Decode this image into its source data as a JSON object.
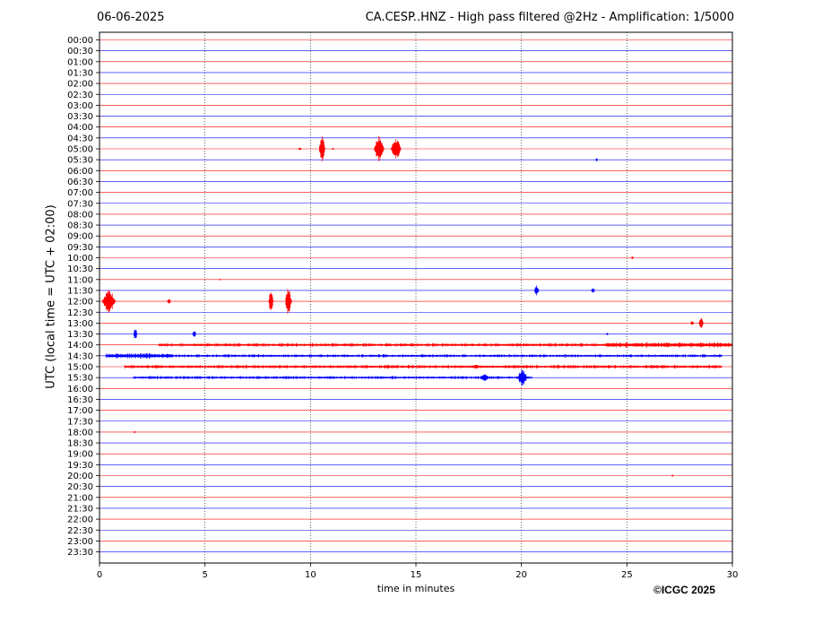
{
  "header": {
    "date": "06-06-2025",
    "title": "CA.CESP..HNZ - High pass filtered @2Hz - Amplification: 1/5000"
  },
  "footer": {
    "copyright": "©ICGC 2025"
  },
  "chart_data": {
    "type": "line",
    "title": "CA.CESP..HNZ - High pass filtered @2Hz - Amplification: 1/5000",
    "xlabel": "time in minutes",
    "ylabel": "UTC (local time = UTC + 02:00)",
    "xlim": [
      0,
      30
    ],
    "x_ticks": [
      "0",
      "5",
      "10",
      "15",
      "20",
      "25",
      "30"
    ],
    "x_tick_values": [
      0,
      5,
      10,
      15,
      20,
      25,
      30
    ],
    "grid": "vertical dotted lines at 5-minute ticks",
    "trace_colors": [
      "#ff0000",
      "#0000ff"
    ],
    "traces": [
      "00:00",
      "00:30",
      "01:00",
      "01:30",
      "02:00",
      "02:30",
      "03:00",
      "03:30",
      "04:00",
      "04:30",
      "05:00",
      "05:30",
      "06:00",
      "06:30",
      "07:00",
      "07:30",
      "08:00",
      "08:30",
      "09:00",
      "09:30",
      "10:00",
      "10:30",
      "11:00",
      "11:30",
      "12:00",
      "12:30",
      "13:00",
      "13:30",
      "14:00",
      "14:30",
      "15:00",
      "15:30",
      "16:00",
      "16:30",
      "17:00",
      "17:30",
      "18:00",
      "18:30",
      "19:00",
      "19:30",
      "20:00",
      "20:30",
      "21:00",
      "21:30",
      "22:00",
      "22:30",
      "23:00",
      "23:30"
    ],
    "events": [
      {
        "trace": "05:00",
        "start": 9.4,
        "end": 9.7,
        "amp": 0.3
      },
      {
        "trace": "05:00",
        "start": 10.4,
        "end": 10.9,
        "amp": 2.8
      },
      {
        "trace": "05:00",
        "start": 11.0,
        "end": 11.2,
        "amp": 0.2
      },
      {
        "trace": "05:00",
        "start": 13.0,
        "end": 13.8,
        "amp": 2.4
      },
      {
        "trace": "05:00",
        "start": 13.8,
        "end": 14.6,
        "amp": 2.0
      },
      {
        "trace": "05:30",
        "start": 23.5,
        "end": 23.7,
        "amp": 0.4
      },
      {
        "trace": "10:00",
        "start": 25.2,
        "end": 25.4,
        "amp": 0.3
      },
      {
        "trace": "11:00",
        "start": 5.7,
        "end": 5.8,
        "amp": 0.4
      },
      {
        "trace": "11:30",
        "start": 20.6,
        "end": 21.0,
        "amp": 1.0
      },
      {
        "trace": "11:30",
        "start": 23.3,
        "end": 23.6,
        "amp": 0.6
      },
      {
        "trace": "12:00",
        "start": 0.1,
        "end": 1.2,
        "amp": 2.2
      },
      {
        "trace": "12:00",
        "start": 3.2,
        "end": 3.5,
        "amp": 0.5
      },
      {
        "trace": "12:00",
        "start": 8.0,
        "end": 8.4,
        "amp": 2.0
      },
      {
        "trace": "12:00",
        "start": 8.8,
        "end": 9.3,
        "amp": 3.0
      },
      {
        "trace": "13:00",
        "start": 28.0,
        "end": 28.3,
        "amp": 0.4
      },
      {
        "trace": "13:00",
        "start": 28.4,
        "end": 28.8,
        "amp": 1.2
      },
      {
        "trace": "13:30",
        "start": 1.6,
        "end": 1.9,
        "amp": 1.4
      },
      {
        "trace": "13:30",
        "start": 4.4,
        "end": 4.7,
        "amp": 0.7
      },
      {
        "trace": "13:30",
        "start": 24.0,
        "end": 24.2,
        "amp": 0.3
      },
      {
        "trace": "14:00",
        "start": 2.8,
        "end": 30.0,
        "amp": 0.35
      },
      {
        "trace": "14:00",
        "start": 24.0,
        "end": 30.0,
        "amp": 0.5
      },
      {
        "trace": "14:30",
        "start": 0.3,
        "end": 3.5,
        "amp": 0.5
      },
      {
        "trace": "14:30",
        "start": 3.5,
        "end": 29.5,
        "amp": 0.3
      },
      {
        "trace": "15:00",
        "start": 1.2,
        "end": 29.5,
        "amp": 0.35
      },
      {
        "trace": "15:30",
        "start": 1.6,
        "end": 20.5,
        "amp": 0.3
      },
      {
        "trace": "15:30",
        "start": 18.0,
        "end": 18.8,
        "amp": 0.6
      },
      {
        "trace": "15:30",
        "start": 19.8,
        "end": 20.6,
        "amp": 1.5
      },
      {
        "trace": "18:00",
        "start": 1.6,
        "end": 1.8,
        "amp": 0.2
      },
      {
        "trace": "20:00",
        "start": 27.1,
        "end": 27.3,
        "amp": 0.2
      }
    ]
  }
}
